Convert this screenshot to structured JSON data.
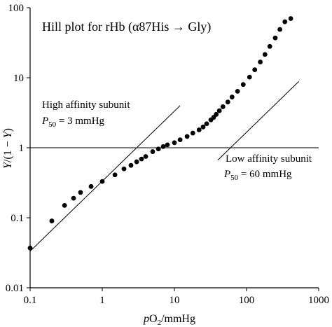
{
  "chart_data": {
    "type": "scatter",
    "title": "Hill plot for rHb (α87His → Gly)",
    "xlabel": {
      "pre": "p",
      "mid": "O",
      "sub": "2",
      "post": "/mmHg"
    },
    "ylabel": {
      "p1": "Y",
      "p2": "/(1 − ",
      "p3": "Y",
      "p4": ")"
    },
    "xscale": "log",
    "yscale": "log",
    "xlim": [
      0.1,
      1000
    ],
    "ylim": [
      0.01,
      100
    ],
    "xticks": [
      {
        "value": 0.1,
        "label": "0.1"
      },
      {
        "value": 1,
        "label": "1"
      },
      {
        "value": 10,
        "label": "10"
      },
      {
        "value": 100,
        "label": "100"
      },
      {
        "value": 1000,
        "label": "1000"
      }
    ],
    "yticks": [
      {
        "value": 0.01,
        "label": "0.01"
      },
      {
        "value": 0.1,
        "label": "0.1"
      },
      {
        "value": 1,
        "label": "1"
      },
      {
        "value": 10,
        "label": "10"
      },
      {
        "value": 100,
        "label": "100"
      }
    ],
    "reference_line_y": 1,
    "series": [
      {
        "x": [
          0.1,
          0.2,
          0.3,
          0.4,
          0.5,
          0.7,
          1.0,
          1.5,
          2.0,
          2.5,
          3.0,
          3.5,
          4.0,
          5.0,
          6.0,
          7.0,
          8.0,
          10,
          12,
          15,
          18,
          22,
          25,
          28,
          32,
          35,
          38,
          42,
          47,
          55,
          63,
          75,
          90,
          110,
          130,
          155,
          180,
          210,
          250,
          290,
          340,
          410
        ],
        "y": [
          0.037,
          0.09,
          0.15,
          0.19,
          0.23,
          0.28,
          0.33,
          0.41,
          0.5,
          0.56,
          0.63,
          0.69,
          0.75,
          0.88,
          0.96,
          1.04,
          1.1,
          1.18,
          1.3,
          1.45,
          1.62,
          1.8,
          1.98,
          2.2,
          2.5,
          2.72,
          3.0,
          3.38,
          3.85,
          4.5,
          5.3,
          6.4,
          8.0,
          10.2,
          13.0,
          16.8,
          21.5,
          28,
          37,
          49,
          63,
          70
        ]
      }
    ],
    "asymptotes": [
      {
        "name": "High affinity subunit",
        "p50": 3,
        "n": 1,
        "x_range": [
          0.1,
          12
        ]
      },
      {
        "name": "Low affinity subunit",
        "p50": 60,
        "n": 1,
        "x_range": [
          40,
          530
        ]
      }
    ],
    "annotations": [
      {
        "id": "high",
        "line1": "High affinity subunit",
        "p_italic": "P",
        "sub": "50",
        "rest": " = 3 mmHg"
      },
      {
        "id": "low",
        "line1": "Low affinity subunit",
        "p_italic": "P",
        "sub": "50",
        "rest": " = 60 mmHg"
      }
    ]
  }
}
